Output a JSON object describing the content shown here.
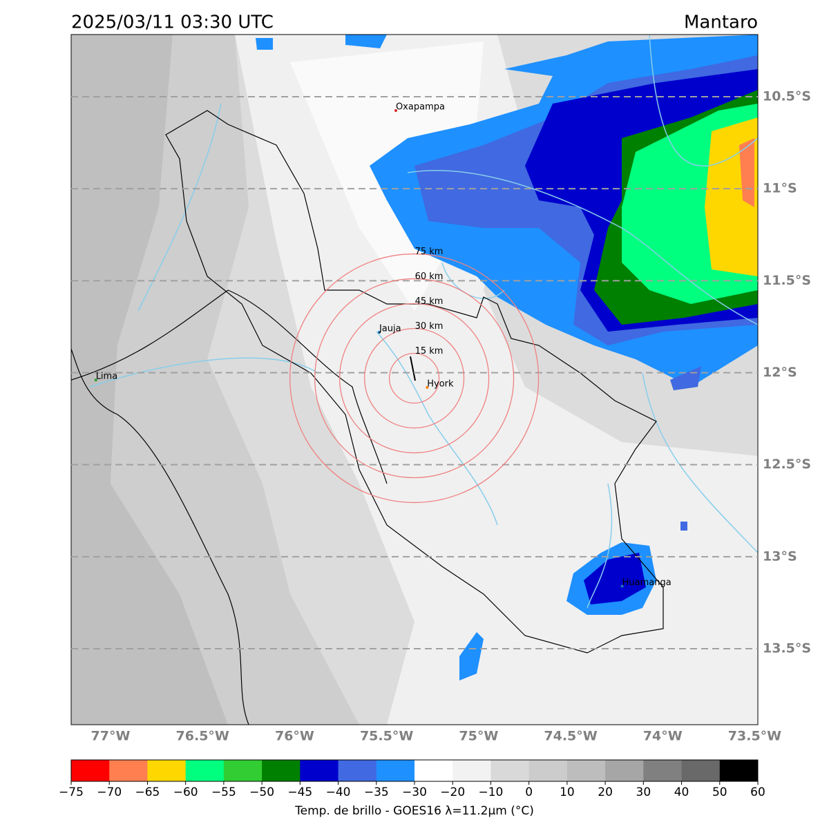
{
  "header": {
    "title": "2025/03/11 03:30 UTC",
    "region": "Mantaro"
  },
  "map": {
    "lon_range": [
      -77.214,
      -73.483
    ],
    "lat_range": [
      -13.913,
      -10.162
    ],
    "lat_ticks": [
      {
        "value": -10.5,
        "label": "10.5°S"
      },
      {
        "value": -11,
        "label": "11°S"
      },
      {
        "value": -11.5,
        "label": "11.5°S"
      },
      {
        "value": -12,
        "label": "12°S"
      },
      {
        "value": -12.5,
        "label": "12.5°S"
      },
      {
        "value": -13,
        "label": "13°S"
      },
      {
        "value": -13.5,
        "label": "13.5°S"
      }
    ],
    "lon_ticks": [
      {
        "value": -77,
        "label": "77°W"
      },
      {
        "value": -76.5,
        "label": "76.5°W"
      },
      {
        "value": -76,
        "label": "76°W"
      },
      {
        "value": -75.5,
        "label": "75.5°W"
      },
      {
        "value": -75,
        "label": "75°W"
      },
      {
        "value": -74.5,
        "label": "74.5°W"
      },
      {
        "value": -74,
        "label": "74°W"
      },
      {
        "value": -73.5,
        "label": "73.5°W"
      }
    ],
    "cities": [
      {
        "name": "Oxapampa",
        "lon": -75.45,
        "lat": -10.575,
        "color": "#d62728"
      },
      {
        "name": "Jauja",
        "lon": -75.54,
        "lat": -11.78,
        "color": "#1f77b4"
      },
      {
        "name": "Lima",
        "lon": -77.08,
        "lat": -12.04,
        "color": "#2ca02c"
      },
      {
        "name": "Hyork",
        "lon": -75.28,
        "lat": -12.08,
        "color": "#ff7f0e"
      },
      {
        "name": "Huamanga",
        "lon": -74.22,
        "lat": -13.16,
        "color": "#1f77b4"
      }
    ],
    "ring_center": {
      "lon": -75.35,
      "lat": -12.03
    },
    "rings": [
      {
        "value": 15,
        "label": "15 km"
      },
      {
        "value": 30,
        "label": "30 km"
      },
      {
        "value": 45,
        "label": "45 km"
      },
      {
        "value": 60,
        "label": "60 km"
      },
      {
        "value": 75,
        "label": "75 km"
      }
    ]
  },
  "colorbar": {
    "label": "Temp. de brillo - GOES16 λ=11.2μm (°C)",
    "ticks": [
      {
        "value": -75,
        "label": "−75"
      },
      {
        "value": -70,
        "label": "−70"
      },
      {
        "value": -65,
        "label": "−65"
      },
      {
        "value": -60,
        "label": "−60"
      },
      {
        "value": -55,
        "label": "−55"
      },
      {
        "value": -50,
        "label": "−50"
      },
      {
        "value": -45,
        "label": "−45"
      },
      {
        "value": -40,
        "label": "−40"
      },
      {
        "value": -35,
        "label": "−35"
      },
      {
        "value": -30,
        "label": "−30"
      },
      {
        "value": -20,
        "label": "−20"
      },
      {
        "value": -10,
        "label": "−10"
      },
      0,
      10,
      20,
      30,
      40,
      50,
      60
    ],
    "colors": [
      "#ff0000",
      "#ff7f50",
      "#ffd700",
      "#00ff7f",
      "#32cd32",
      "#008000",
      "#0000cd",
      "#4169e1",
      "#1e90ff",
      "#ffffff",
      "#f2f2f2",
      "#d9d9d9",
      "#cccccc",
      "#bdbdbd",
      "#a6a6a6",
      "#808080",
      "#696969",
      "#000000"
    ]
  }
}
